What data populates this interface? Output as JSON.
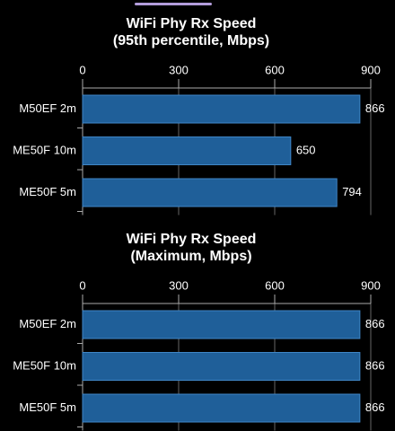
{
  "chart_data": [
    {
      "type": "bar",
      "orientation": "horizontal",
      "title": [
        "WiFi Phy Rx Speed",
        "(95th percentile, Mbps)"
      ],
      "categories": [
        "M50EF 2m",
        "ME50F 10m",
        "ME50F 5m"
      ],
      "values": [
        866,
        650,
        794
      ],
      "color": "#1f5f99",
      "xlim": [
        0,
        900
      ],
      "xticks": [
        0,
        300,
        600,
        900
      ],
      "grid": true
    },
    {
      "type": "bar",
      "orientation": "horizontal",
      "title": [
        "WiFi Phy Rx Speed",
        "(Maximum, Mbps)"
      ],
      "categories": [
        "M50EF 2m",
        "ME50F 10m",
        "ME50F 5m"
      ],
      "values": [
        866,
        866,
        866
      ],
      "color": "#1f5f99",
      "xlim": [
        0,
        900
      ],
      "xticks": [
        0,
        300,
        600,
        900
      ],
      "grid": true
    }
  ]
}
